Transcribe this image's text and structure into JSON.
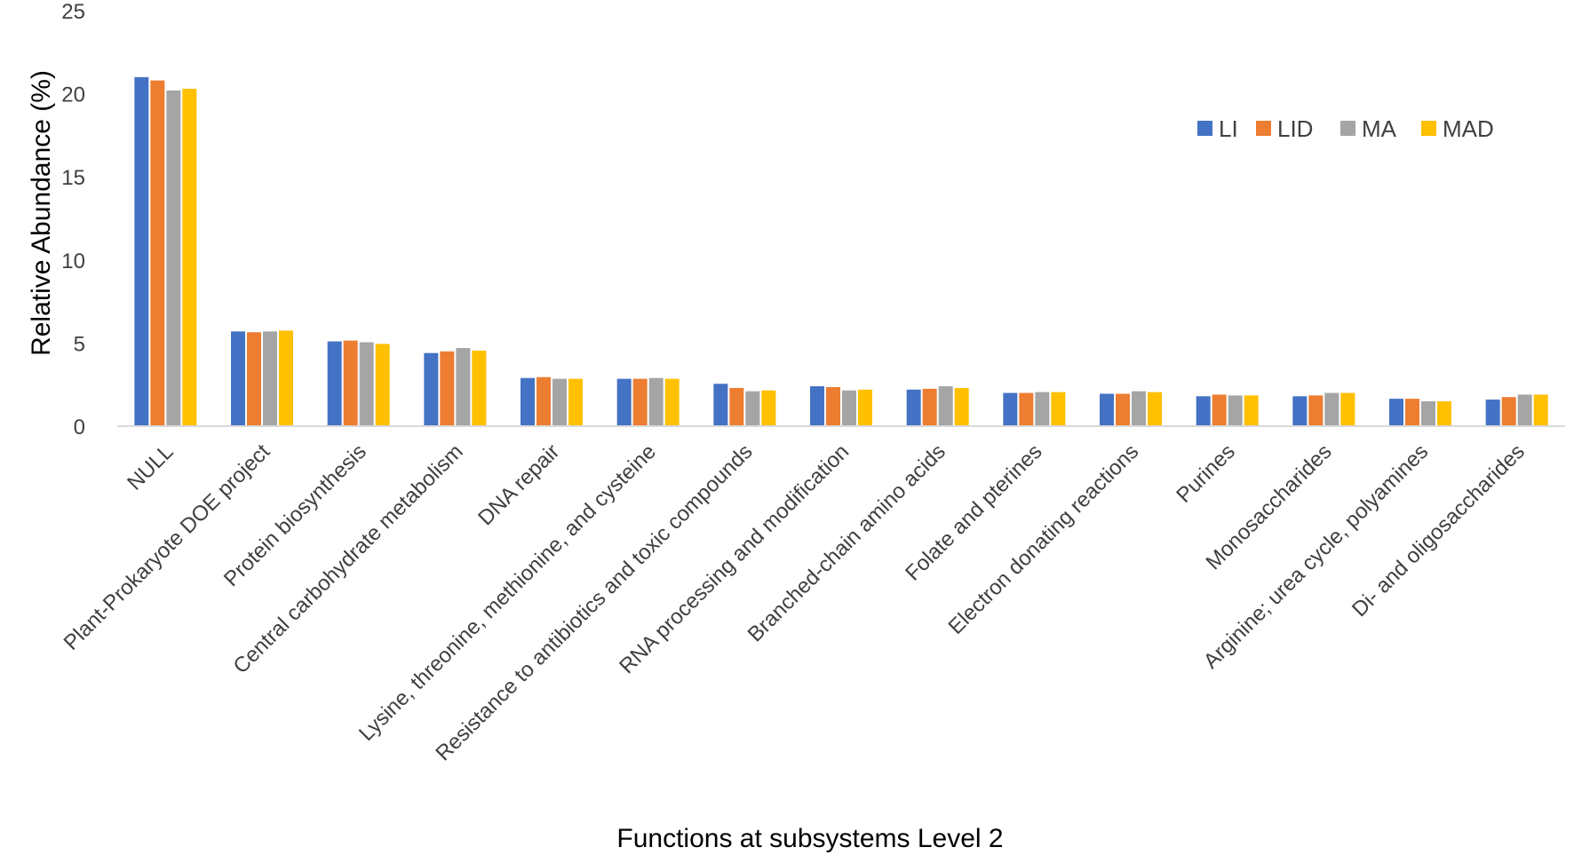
{
  "chart_data": {
    "type": "bar",
    "title": "",
    "xlabel": "Functions at subsystems Level 2",
    "ylabel": "Relative Abundance (%)",
    "ylim": [
      0,
      25
    ],
    "yticks": [
      0,
      5,
      10,
      15,
      20,
      25
    ],
    "grid": false,
    "legend_position": "top-right",
    "categories": [
      "NULL",
      "Plant-Prokaryote DOE project",
      "Protein biosynthesis",
      "Central carbohydrate metabolism",
      "DNA repair",
      "Lysine, threonine, methionine, and cysteine",
      "Resistance to antibiotics and toxic compounds",
      "RNA processing and modification",
      "Branched-chain amino acids",
      "Folate and pterines",
      "Electron donating reactions",
      "Purines",
      "Monosaccharides",
      "Arginine; urea cycle, polyamines",
      "Di- and oligosaccharides"
    ],
    "series": [
      {
        "name": "LI",
        "color": "#4472C4",
        "values": [
          21.0,
          5.7,
          5.1,
          4.4,
          2.9,
          2.85,
          2.55,
          2.4,
          2.2,
          2.0,
          1.95,
          1.8,
          1.8,
          1.65,
          1.6
        ]
      },
      {
        "name": "LID",
        "color": "#ED7D31",
        "values": [
          20.8,
          5.65,
          5.15,
          4.5,
          2.95,
          2.85,
          2.3,
          2.35,
          2.25,
          2.0,
          1.95,
          1.9,
          1.85,
          1.65,
          1.75
        ]
      },
      {
        "name": "MA",
        "color": "#A5A5A5",
        "values": [
          20.2,
          5.7,
          5.05,
          4.7,
          2.85,
          2.9,
          2.1,
          2.15,
          2.4,
          2.05,
          2.1,
          1.85,
          2.0,
          1.5,
          1.9
        ]
      },
      {
        "name": "MAD",
        "color": "#FFC000",
        "values": [
          20.3,
          5.75,
          4.95,
          4.55,
          2.85,
          2.85,
          2.15,
          2.2,
          2.3,
          2.05,
          2.05,
          1.85,
          2.0,
          1.5,
          1.9
        ]
      }
    ]
  }
}
